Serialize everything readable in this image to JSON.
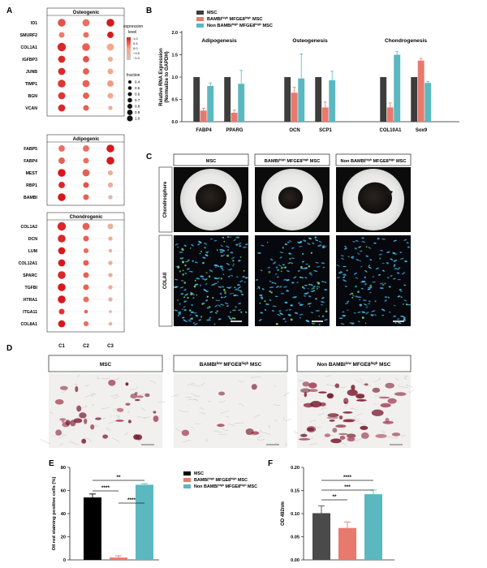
{
  "panel_letters": {
    "A": "A",
    "B": "B",
    "C": "C",
    "D": "D",
    "E": "E",
    "F": "F"
  },
  "panel_a": {
    "groups": [
      {
        "title": "Osteogenic",
        "genes": [
          "ID1",
          "SMURF2",
          "COL1A1",
          "IGFBP3",
          "JUNB",
          "TIMP1",
          "BGN",
          "VCAN"
        ]
      },
      {
        "title": "Adipogenic",
        "genes": [
          "FABP5",
          "FABP4",
          "MEST",
          "RBP1",
          "BAMBI"
        ]
      },
      {
        "title": "Chondrogenic",
        "genes": [
          "COL1A2",
          "DCN",
          "LUM",
          "COL12A1",
          "SPARC",
          "TGFBI",
          "HTRA1",
          "ITGA11",
          "COL8A1"
        ]
      }
    ],
    "clusters": [
      "C1",
      "C2",
      "C3"
    ],
    "expression": [
      [
        0.6,
        0.4,
        1.0
      ],
      [
        0.3,
        0.4,
        1.0
      ],
      [
        0.9,
        0.5,
        0.0
      ],
      [
        0.9,
        0.6,
        -0.2
      ],
      [
        0.9,
        0.5,
        0.0
      ],
      [
        0.8,
        0.5,
        0.1
      ],
      [
        0.8,
        0.5,
        0.0
      ],
      [
        0.9,
        0.5,
        -0.2
      ],
      [
        0.4,
        0.4,
        1.0
      ],
      [
        0.5,
        0.4,
        1.0
      ],
      [
        1.0,
        0.5,
        -0.3
      ],
      [
        0.9,
        0.6,
        -0.2
      ],
      [
        1.0,
        0.5,
        -0.5
      ],
      [
        0.9,
        0.5,
        -0.3
      ],
      [
        0.9,
        0.5,
        -0.2
      ],
      [
        1.0,
        0.4,
        -0.3
      ],
      [
        1.0,
        0.5,
        -0.2
      ],
      [
        0.9,
        0.5,
        -0.2
      ],
      [
        1.0,
        0.5,
        -0.1
      ],
      [
        1.0,
        0.4,
        -0.3
      ],
      [
        0.8,
        0.5,
        -0.5
      ],
      [
        1.0,
        0.4,
        -0.3
      ]
    ],
    "fraction": [
      [
        0.9,
        0.8,
        0.9
      ],
      [
        0.6,
        0.6,
        0.7
      ],
      [
        1.0,
        0.9,
        0.8
      ],
      [
        0.8,
        0.7,
        0.5
      ],
      [
        0.8,
        0.7,
        0.6
      ],
      [
        0.9,
        0.8,
        0.7
      ],
      [
        0.8,
        0.7,
        0.6
      ],
      [
        0.8,
        0.6,
        0.4
      ],
      [
        0.7,
        0.7,
        0.9
      ],
      [
        0.7,
        0.6,
        0.9
      ],
      [
        0.9,
        0.8,
        0.5
      ],
      [
        0.7,
        0.6,
        0.5
      ],
      [
        0.9,
        0.6,
        0.4
      ],
      [
        1.0,
        0.8,
        0.6
      ],
      [
        0.9,
        0.6,
        0.4
      ],
      [
        0.8,
        0.5,
        0.3
      ],
      [
        0.8,
        0.6,
        0.4
      ],
      [
        0.9,
        0.6,
        0.4
      ],
      [
        0.9,
        0.6,
        0.4
      ],
      [
        0.9,
        0.6,
        0.4
      ],
      [
        0.6,
        0.3,
        0.2
      ],
      [
        0.8,
        0.5,
        0.3
      ]
    ],
    "legend": {
      "expression_title": "expression\nlevel",
      "expression_ticks": [
        "1.0",
        "0.5",
        "0.0",
        "−0.5",
        "−1.0"
      ],
      "fraction_title": "fraction",
      "fraction_ticks": [
        "0.4",
        "0.5",
        "0.6",
        "0.7",
        "0.8",
        "0.9",
        "1.0"
      ]
    }
  },
  "panel_c": {
    "columns": [
      "MSC",
      "BAMBI^high MFGE8^high MSC",
      "Non BAMBI^high MFGE8^high MSC"
    ],
    "rows": [
      "Chondrosphere",
      "COLAII"
    ]
  },
  "panel_d": {
    "columns": [
      "MSC",
      "BAMBI^low MFGE8^high MSC",
      "Non BAMBI^low MFGE8^high MSC"
    ]
  },
  "colors": {
    "msc": "#3d3d3d",
    "bambi": "#e8796d",
    "non": "#5bb8c0",
    "black": "#000000",
    "grey": "#4a4a4a"
  },
  "chart_data": [
    {
      "type": "bar",
      "panel": "B",
      "ylabel": "Relative RNA Expression\n(Normalize to GAPDH)",
      "ylim": [
        0,
        2.0
      ],
      "yticks": [
        "0.0",
        "0.5",
        "1.0",
        "1.5",
        "2.0"
      ],
      "legend": [
        "MSC",
        "BAMBI^high MFGE8^high MSC",
        "Non BAMBI^high MFGE8^high MSC"
      ],
      "groups": [
        {
          "title": "Adipogenesis",
          "genes": [
            "FABP4",
            "PPARG"
          ]
        },
        {
          "title": "Osteogenesis",
          "genes": [
            "OCN",
            "SCP1"
          ]
        },
        {
          "title": "Chondrogenesis",
          "genes": [
            "COL10A1",
            "Sox9"
          ]
        }
      ],
      "series": [
        {
          "name": "MSC",
          "values": [
            1.0,
            1.0,
            1.0,
            1.0,
            1.0,
            1.0
          ],
          "errors": [
            0,
            0,
            0,
            0,
            0,
            0
          ]
        },
        {
          "name": "BAMBI^high MFGE8^high MSC",
          "values": [
            0.25,
            0.2,
            0.65,
            0.32,
            0.32,
            1.37
          ],
          "errors": [
            0.05,
            0.06,
            0.12,
            0.12,
            0.1,
            0.05
          ]
        },
        {
          "name": "Non BAMBI^high MFGE8^high MSC",
          "values": [
            0.8,
            0.85,
            0.97,
            0.93,
            1.5,
            0.87
          ],
          "errors": [
            0.07,
            0.3,
            0.55,
            0.2,
            0.07,
            0.03
          ]
        }
      ]
    },
    {
      "type": "bar",
      "panel": "E",
      "ylabel": "Oil red staining positive cells (%)",
      "ylim": [
        0,
        80
      ],
      "yticks": [
        "0",
        "20",
        "40",
        "60",
        "80"
      ],
      "legend": [
        "MSC",
        "BAMBI^high MFGE8^high MSC",
        "Non BAMBI^high MFGE8^high MSC"
      ],
      "categories": [
        "MSC",
        "BAMBI^high MFGE8^high MSC",
        "Non BAMBI^high MFGE8^high MSC"
      ],
      "values": [
        54,
        2,
        65
      ],
      "errors": [
        3,
        1.5,
        1
      ],
      "significance": [
        "**",
        "****",
        "****"
      ]
    },
    {
      "type": "bar",
      "panel": "F",
      "ylabel": "OD 492nm",
      "ylim": [
        0,
        0.2
      ],
      "yticks": [
        "0.00",
        "0.05",
        "0.10",
        "0.15",
        "0.20"
      ],
      "categories": [
        "MSC",
        "BAMBI^high MFGE8^high MSC",
        "Non BAMBI^high MFGE8^high MSC"
      ],
      "values": [
        0.101,
        0.069,
        0.142
      ],
      "errors": [
        0.016,
        0.013,
        0.009
      ],
      "significance": [
        "****",
        "***",
        "**"
      ]
    }
  ]
}
